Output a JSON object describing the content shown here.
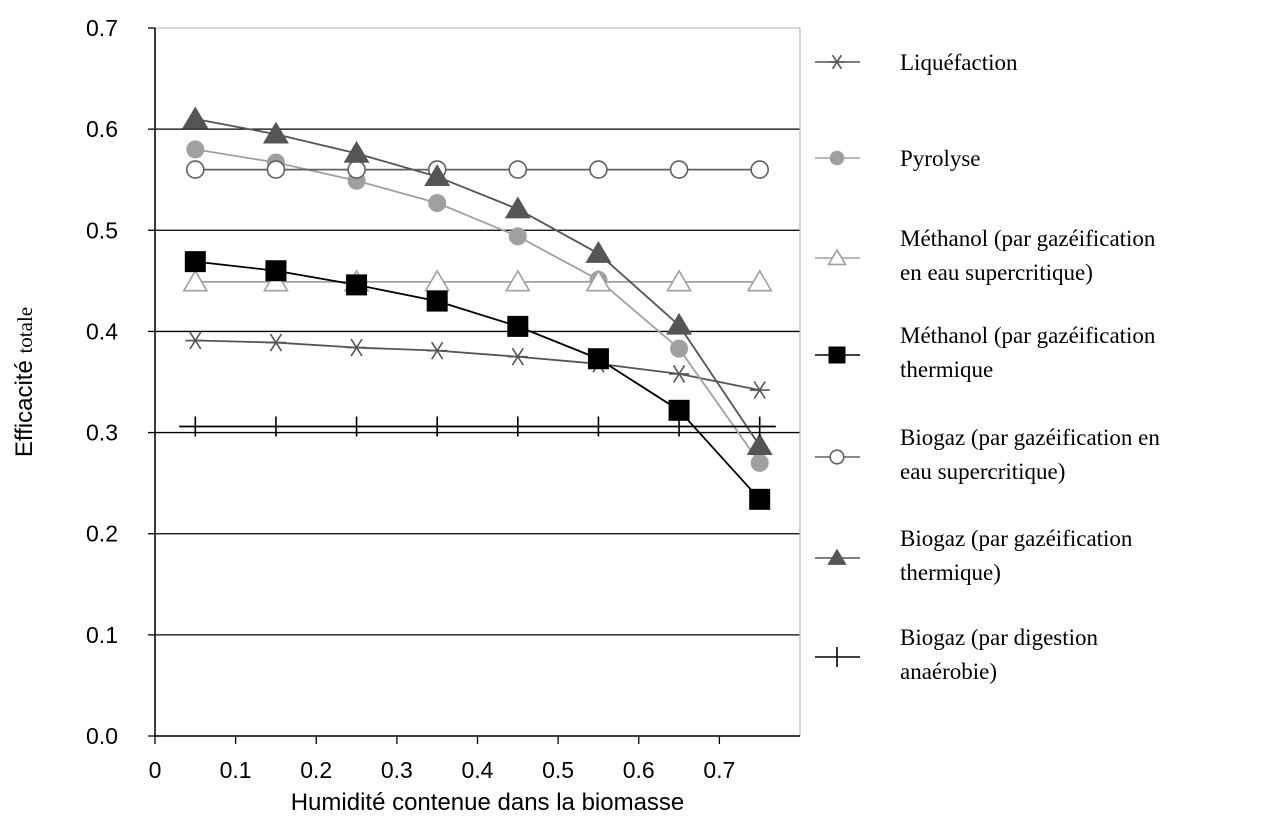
{
  "chart_data": {
    "type": "line",
    "xlabel": "Humidité contenue dans la biomasse",
    "ylabel_main": "Efficacité",
    "ylabel_suffix": "totale",
    "xlim": [
      0,
      0.8
    ],
    "ylim": [
      0,
      0.7
    ],
    "x_ticks": [
      "0",
      "0.1",
      "0.2",
      "0.3",
      "0.4",
      "0.5",
      "0.6",
      "0.7"
    ],
    "y_ticks": [
      "0.0",
      "0.1",
      "0.2",
      "0.3",
      "0.4",
      "0.5",
      "0.6",
      "0.7"
    ],
    "grid": "horizontal",
    "legend_position": "right",
    "x": [
      0.05,
      0.15,
      0.25,
      0.35,
      0.45,
      0.55,
      0.65,
      0.75
    ],
    "series": [
      {
        "name": "Liquéfaction",
        "legend_lines": [
          "Liquéfaction"
        ],
        "marker": "asterisk",
        "color": "#555555",
        "values": [
          0.391,
          0.389,
          0.384,
          0.381,
          0.375,
          0.368,
          0.358,
          0.342
        ]
      },
      {
        "name": "Pyrolyse",
        "legend_lines": [
          "Pyrolyse"
        ],
        "marker": "filled-circle",
        "color": "#a0a0a0",
        "values": [
          0.58,
          0.567,
          0.549,
          0.527,
          0.494,
          0.451,
          0.383,
          0.27
        ]
      },
      {
        "name": "Méthanol (par gazéification en eau supercritique)",
        "legend_lines": [
          "Méthanol (par gazéification",
          "en eau supercritique)"
        ],
        "marker": "open-triangle",
        "color": "#a0a0a0",
        "values": [
          0.449,
          0.449,
          0.449,
          0.449,
          0.449,
          0.449,
          0.449,
          0.449
        ]
      },
      {
        "name": "Méthanol (par gazéification thermique",
        "legend_lines": [
          "Méthanol (par gazéification",
          "thermique"
        ],
        "marker": "filled-square",
        "color": "#000000",
        "values": [
          0.469,
          0.46,
          0.446,
          0.43,
          0.405,
          0.373,
          0.322,
          0.234
        ]
      },
      {
        "name": "Biogaz (par gazéification en eau supercritique)",
        "legend_lines": [
          "Biogaz (par gazéification en",
          "eau supercritique)"
        ],
        "marker": "open-circle",
        "color": "#606060",
        "values": [
          0.56,
          0.56,
          0.56,
          0.56,
          0.56,
          0.56,
          0.56,
          0.56
        ]
      },
      {
        "name": "Biogaz (par gazéification thermique)",
        "legend_lines": [
          "Biogaz (par gazéification",
          "thermique)"
        ],
        "marker": "filled-triangle",
        "color": "#555555",
        "values": [
          0.61,
          0.595,
          0.576,
          0.553,
          0.521,
          0.477,
          0.406,
          0.287
        ]
      },
      {
        "name": "Biogaz (par digestion anaérobie)",
        "legend_lines": [
          "Biogaz (par digestion",
          "anaérobie)"
        ],
        "marker": "plus",
        "color": "#000000",
        "values": [
          0.306,
          0.306,
          0.306,
          0.306,
          0.306,
          0.306,
          0.306,
          0.306
        ]
      }
    ]
  }
}
